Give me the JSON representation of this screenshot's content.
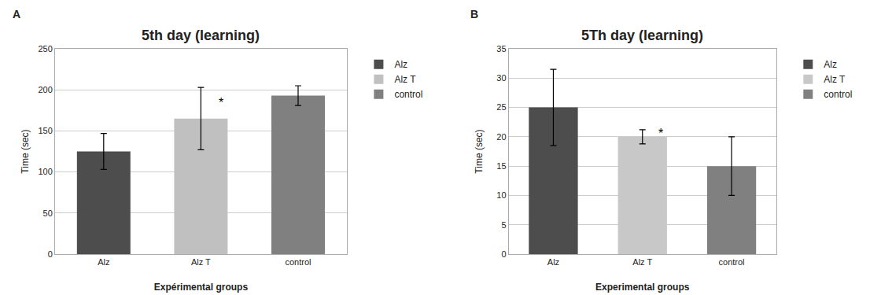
{
  "chart_data": [
    {
      "type": "bar",
      "title": "5th day (learning)",
      "xlabel": "Expérimental groups",
      "ylabel": "Time (sec)",
      "categories": [
        "Alz",
        "Alz T",
        "control"
      ],
      "values": [
        125,
        165,
        193
      ],
      "errors": [
        22,
        38,
        12
      ],
      "colors": [
        "#4d4d4d",
        "#c0c0c0",
        "#808080"
      ],
      "ylim": [
        0,
        250
      ],
      "yticks": [
        0,
        50,
        100,
        150,
        200,
        250
      ],
      "grid": true,
      "legend": "right",
      "annotations": [
        {
          "text": "A"
        },
        {
          "text": "*",
          "category": "Alz T"
        }
      ]
    },
    {
      "type": "bar",
      "title": "5Th day (learning)",
      "xlabel": "Experimental groups",
      "ylabel": "Time (sec)",
      "categories": [
        "Alz",
        "Alz T",
        "control"
      ],
      "values": [
        25,
        20,
        15
      ],
      "errors": [
        6.5,
        1.2,
        5.0
      ],
      "colors": [
        "#4d4d4d",
        "#c8c8c8",
        "#808080"
      ],
      "ylim": [
        0,
        35
      ],
      "yticks": [
        0,
        5,
        10,
        15,
        20,
        25,
        30,
        35
      ],
      "grid": true,
      "legend": "right",
      "annotations": [
        {
          "text": "B"
        },
        {
          "text": "*",
          "category": "Alz T"
        }
      ]
    }
  ]
}
